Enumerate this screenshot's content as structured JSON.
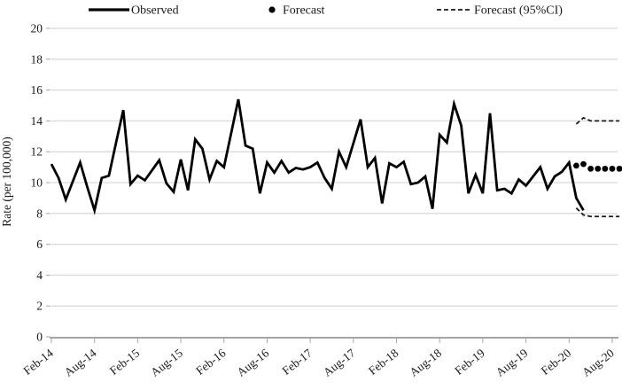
{
  "figure": {
    "y_axis_title": "Rate (per 100,000)",
    "legend": [
      {
        "label": "Observed",
        "marker": "solid-line"
      },
      {
        "label": "Forecast",
        "marker": "dot"
      },
      {
        "label": "Forecast (95%CI)",
        "marker": "dashed-line"
      }
    ]
  },
  "chart_data": {
    "type": "line",
    "title": "",
    "xlabel": "",
    "ylabel": "Rate (per 100,000)",
    "ylim": [
      0,
      20
    ],
    "ytick_step": 2,
    "grid": true,
    "legend_position": "top",
    "x_frequency": "monthly",
    "x_tick_labels": [
      "Feb-14",
      "Aug-14",
      "Feb-15",
      "Aug-15",
      "Feb-16",
      "Aug-16",
      "Feb-17",
      "Aug-17",
      "Feb-18",
      "Aug-18",
      "Feb-19",
      "Aug-19",
      "Feb-20",
      "Aug-20"
    ],
    "x_months_per_tick": 6,
    "colors": {
      "observed": "#000000",
      "forecast": "#000000",
      "ci": "#1a1a1a",
      "gridline": "#d9d9d9",
      "axis": "#a6a6a6"
    },
    "series": [
      {
        "name": "Observed",
        "style": "solid-line",
        "start_label": "Feb-14",
        "end_label": "Apr-20",
        "start_month_index": 0,
        "values": [
          11.2,
          10.3,
          8.9,
          10.1,
          11.3,
          9.7,
          8.2,
          10.3,
          10.45,
          12.6,
          14.7,
          9.9,
          10.45,
          10.15,
          10.8,
          11.45,
          9.95,
          9.4,
          11.5,
          9.5,
          12.8,
          12.2,
          10.2,
          11.4,
          11.0,
          13.2,
          15.4,
          12.4,
          12.2,
          9.3,
          11.3,
          10.65,
          11.4,
          10.65,
          10.95,
          10.85,
          11.0,
          11.3,
          10.3,
          9.6,
          12.0,
          11.0,
          12.55,
          14.1,
          11.0,
          11.6,
          8.65,
          11.25,
          11.0,
          11.35,
          9.9,
          10.0,
          10.4,
          8.3,
          13.1,
          12.6,
          15.1,
          13.7,
          9.3,
          10.5,
          9.3,
          14.5,
          9.5,
          9.6,
          9.3,
          10.2,
          9.8,
          10.4,
          11.0,
          9.6,
          10.4,
          10.7,
          11.3,
          9.0,
          8.2
        ]
      },
      {
        "name": "Forecast",
        "style": "dots",
        "start_label": "Mar-20",
        "start_month_index": 73,
        "values": [
          11.1,
          11.2,
          10.9,
          10.9,
          10.9,
          10.9,
          10.9
        ]
      },
      {
        "name": "Forecast (95%CI) upper",
        "style": "dashed-line",
        "start_label": "Mar-20",
        "start_month_index": 73,
        "values": [
          13.8,
          14.2,
          14.0,
          14.0,
          14.0,
          14.0,
          14.0
        ]
      },
      {
        "name": "Forecast (95%CI) lower",
        "style": "dashed-line",
        "start_label": "Mar-20",
        "start_month_index": 73,
        "values": [
          8.35,
          7.9,
          7.8,
          7.8,
          7.8,
          7.8,
          7.8
        ]
      }
    ]
  }
}
